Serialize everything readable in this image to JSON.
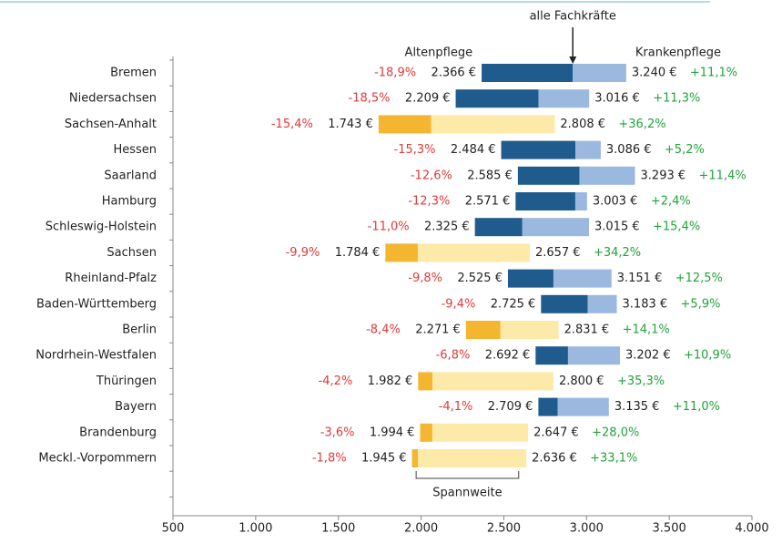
{
  "chart_data": {
    "type": "range_bar",
    "categories": [
      "Bremen",
      "Niedersachsen",
      "Sachsen-Anhalt",
      "Hessen",
      "Saarland",
      "Hamburg",
      "Schleswig-Holstein",
      "Sachsen",
      "Rheinland-Pfalz",
      "Baden-Württemberg",
      "Berlin",
      "Nordrhein-Westfalen",
      "Thüringen",
      "Bayern",
      "Brandenburg",
      "Meckl.-Vorpommern"
    ],
    "series": [
      {
        "name": "Altenpflege",
        "values": [
          2366,
          2209,
          1743,
          2484,
          2585,
          2571,
          2325,
          1784,
          2525,
          2725,
          2271,
          2692,
          1982,
          2709,
          1994,
          1945
        ],
        "value_labels": [
          "2.366 €",
          "2.209 €",
          "1.743 €",
          "2.484 €",
          "2.585 €",
          "2.571 €",
          "2.325 €",
          "1.784 €",
          "2.525 €",
          "2.725 €",
          "2.271 €",
          "2.692 €",
          "1.982 €",
          "2.709 €",
          "1.994 €",
          "1.945 €"
        ],
        "diffs": [
          -18.9,
          -18.5,
          -15.4,
          -15.3,
          -12.6,
          -12.3,
          -11.0,
          -9.9,
          -9.8,
          -9.4,
          -8.4,
          -6.8,
          -4.2,
          -4.1,
          -3.6,
          -1.8
        ],
        "diff_labels": [
          "-18,9%",
          "-18,5%",
          "-15,4%",
          "-15,3%",
          "-12,6%",
          "-12,3%",
          "-11,0%",
          "-9,9%",
          "-9,8%",
          "-9,4%",
          "-8,4%",
          "-6,8%",
          "-4,2%",
          "-4,1%",
          "-3,6%",
          "-1,8%"
        ],
        "colors": [
          "#1f5b8c",
          "#1f5b8c",
          "#f4b630",
          "#1f5b8c",
          "#1f5b8c",
          "#1f5b8c",
          "#1f5b8c",
          "#f4b630",
          "#1f5b8c",
          "#1f5b8c",
          "#f4b630",
          "#1f5b8c",
          "#f4b630",
          "#1f5b8c",
          "#f4b630",
          "#f4b630"
        ]
      },
      {
        "name": "alle Fachkräfte",
        "values": [
          2917,
          2710,
          2061,
          2933,
          2957,
          2932,
          2612,
          1980,
          2800,
          3007,
          2480,
          2888,
          2069,
          2825,
          2068,
          1981
        ]
      },
      {
        "name": "Krankenpflege",
        "values": [
          3240,
          3016,
          2808,
          3086,
          3293,
          3003,
          3015,
          2657,
          3151,
          3183,
          2831,
          3202,
          2800,
          3135,
          2647,
          2636
        ],
        "value_labels": [
          "3.240 €",
          "3.016 €",
          "2.808 €",
          "3.086 €",
          "3.293 €",
          "3.003 €",
          "3.015 €",
          "2.657 €",
          "3.151 €",
          "3.183 €",
          "2.831 €",
          "3.202 €",
          "2.800 €",
          "3.135 €",
          "2.647 €",
          "2.636 €"
        ],
        "diffs": [
          11.1,
          11.3,
          36.2,
          5.2,
          11.4,
          2.4,
          15.4,
          34.2,
          12.5,
          5.9,
          14.1,
          10.9,
          35.3,
          11.0,
          28.0,
          33.1
        ],
        "diff_labels": [
          "+11,1%",
          "+11,3%",
          "+36,2%",
          "+5,2%",
          "+11,4%",
          "+2,4%",
          "+15,4%",
          "+34,2%",
          "+12,5%",
          "+5,9%",
          "+14,1%",
          "+10,9%",
          "+35,3%",
          "+11,0%",
          "+28,0%",
          "+33,1%"
        ],
        "colors": [
          "#9bb9de",
          "#9bb9de",
          "#fde9a8",
          "#9bb9de",
          "#9bb9de",
          "#9bb9de",
          "#9bb9de",
          "#fde9a8",
          "#9bb9de",
          "#9bb9de",
          "#fde9a8",
          "#9bb9de",
          "#fde9a8",
          "#9bb9de",
          "#fde9a8",
          "#fde9a8"
        ]
      }
    ],
    "annotation": "Spannweite",
    "xlim": [
      500,
      4000
    ],
    "xticks": [
      500,
      {
        "value": 1000,
        "label": "1.000"
      },
      {
        "value": 1500,
        "label": "1.500"
      },
      {
        "value": 2000,
        "label": "2.000"
      },
      {
        "value": 2500,
        "label": "2.500"
      },
      {
        "value": 3000,
        "label": "3.000"
      },
      {
        "value": 3500,
        "label": "3.500"
      },
      {
        "value": 4000,
        "label": "4.000"
      }
    ]
  }
}
